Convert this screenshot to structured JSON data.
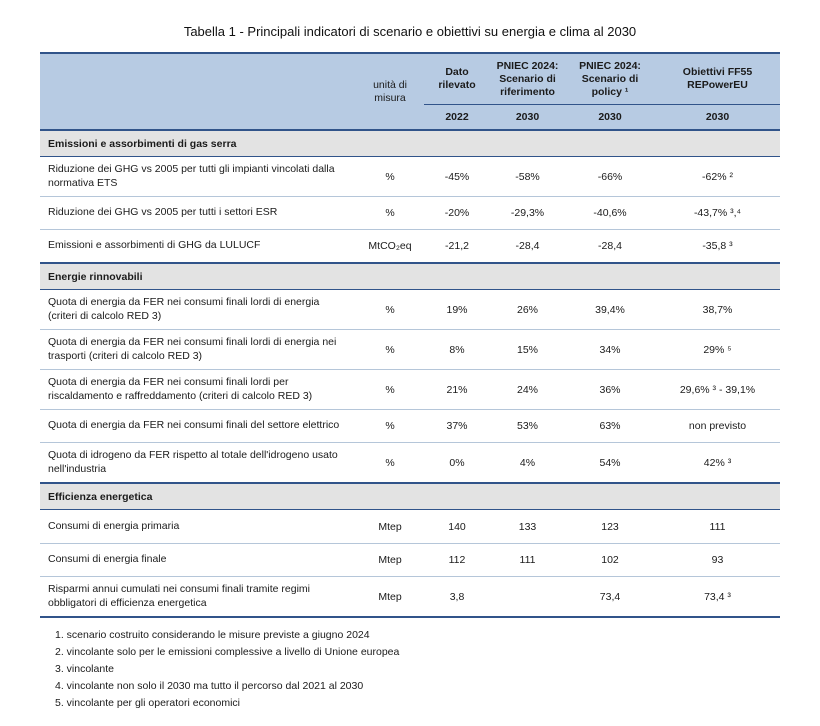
{
  "title": "Tabella 1 - Principali indicatori di scenario e obiettivi su energia e clima al 2030",
  "header": {
    "unit_label": "unità di misura",
    "columns": [
      {
        "label": "Dato rilevato",
        "year": "2022"
      },
      {
        "label": "PNIEC 2024: Scenario di riferimento",
        "year": "2030"
      },
      {
        "label": "PNIEC 2024: Scenario di policy ¹",
        "year": "2030"
      },
      {
        "label": "Obiettivi FF55 REPowerEU",
        "year": "2030"
      }
    ]
  },
  "sections": [
    {
      "title": "Emissioni e assorbimenti di gas serra",
      "rows": [
        {
          "indicator": "Riduzione dei GHG vs 2005 per tutti gli impianti vincolati dalla normativa ETS",
          "unit": "%",
          "values": [
            "-45%",
            "-58%",
            "-66%",
            "-62% ²"
          ]
        },
        {
          "indicator": "Riduzione dei GHG vs 2005 per tutti i settori ESR",
          "unit": "%",
          "values": [
            "-20%",
            "-29,3%",
            "-40,6%",
            "-43,7% ³,⁴"
          ]
        },
        {
          "indicator": "Emissioni e assorbimenti di GHG da LULUCF",
          "unit": "MtCO₂eq",
          "values": [
            "-21,2",
            "-28,4",
            "-28,4",
            "-35,8 ³"
          ]
        }
      ]
    },
    {
      "title": "Energie rinnovabili",
      "rows": [
        {
          "indicator": "Quota di energia da FER nei consumi finali lordi di energia (criteri di calcolo RED 3)",
          "unit": "%",
          "values": [
            "19%",
            "26%",
            "39,4%",
            "38,7%"
          ]
        },
        {
          "indicator": "Quota di energia da FER nei consumi finali lordi di energia nei trasporti (criteri di calcolo RED 3)",
          "unit": "%",
          "values": [
            "8%",
            "15%",
            "34%",
            "29% ⁵"
          ]
        },
        {
          "indicator": "Quota di energia da FER nei consumi finali lordi per riscaldamento e raffreddamento (criteri di calcolo RED 3)",
          "unit": "%",
          "values": [
            "21%",
            "24%",
            "36%",
            "29,6% ³ - 39,1%"
          ]
        },
        {
          "indicator": "Quota di energia da FER nei consumi finali del settore elettrico",
          "unit": "%",
          "values": [
            "37%",
            "53%",
            "63%",
            "non previsto"
          ]
        },
        {
          "indicator": "Quota di idrogeno da FER rispetto al totale dell'idrogeno usato nell'industria",
          "unit": "%",
          "values": [
            "0%",
            "4%",
            "54%",
            "42% ³"
          ]
        }
      ]
    },
    {
      "title": "Efficienza energetica",
      "rows": [
        {
          "indicator": "Consumi di energia primaria",
          "unit": "Mtep",
          "values": [
            "140",
            "133",
            "123",
            "111"
          ]
        },
        {
          "indicator": "Consumi di energia finale",
          "unit": "Mtep",
          "values": [
            "112",
            "111",
            "102",
            "93"
          ]
        },
        {
          "indicator": "Risparmi annui cumulati nei consumi finali tramite regimi obbligatori di efficienza energetica",
          "unit": "Mtep",
          "values": [
            "3,8",
            "",
            "73,4",
            "73,4 ³"
          ]
        }
      ]
    }
  ],
  "footnotes": [
    "1. scenario costruito considerando le misure previste a giugno 2024",
    "2. vincolante solo per le emissioni complessive a livello di Unione europea",
    "3. vincolante",
    "4. vincolante non solo il 2030 ma tutto il percorso dal 2021 al 2030",
    "5. vincolante per gli operatori economici"
  ],
  "colors": {
    "header_bg": "#b7cbe3",
    "rule_navy": "#31548a",
    "section_bg": "#e3e3e3",
    "row_divider": "#b5c6d9"
  }
}
